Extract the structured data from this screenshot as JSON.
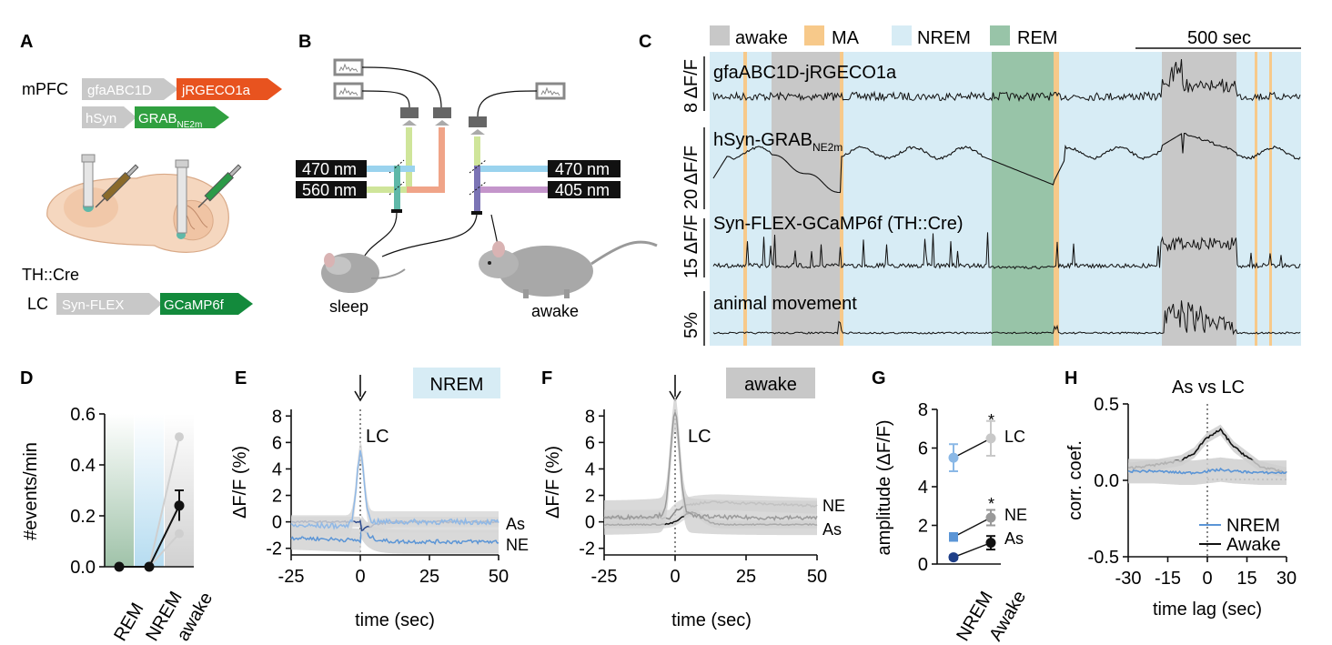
{
  "panels": {
    "A": "A",
    "B": "B",
    "C": "C",
    "D": "D",
    "E": "E",
    "F": "F",
    "G": "G",
    "H": "H"
  },
  "colors": {
    "awake": "#c8c8c8",
    "ma": "#f7c98a",
    "nrem": "#d7ecf5",
    "rem": "#98c4a8",
    "red": "#e8531f",
    "green": "#30a040",
    "darkgreen": "#138a3c",
    "blue": "#9ad3ee",
    "lightgreen": "#cfe59a",
    "orange": "#f0a488",
    "purple": "#c495cb",
    "nremline": "#5b95d6",
    "graytrace": "#8a8a8a"
  },
  "panelA": {
    "mpfc": "mPFC",
    "gfa": "gfaABC1D",
    "jr": "jRGECO1a",
    "hsyn": "hSyn",
    "grab": "GRAB",
    "grab_sub": "NE2m",
    "thcre": "TH::Cre",
    "lc": "LC",
    "synflex": "Syn-FLEX",
    "gcamp": "GCaMP6f"
  },
  "panelB": {
    "wl1": "470 nm",
    "wl2": "560 nm",
    "wl3": "470 nm",
    "wl4": "405 nm",
    "sleep": "sleep",
    "awake": "awake"
  },
  "panelC": {
    "legend": [
      {
        "label": "awake",
        "color": "#c8c8c8"
      },
      {
        "label": "MA",
        "color": "#f7c98a"
      },
      {
        "label": "NREM",
        "color": "#d7ecf5"
      },
      {
        "label": "REM",
        "color": "#98c4a8"
      }
    ],
    "scalebar": "500 sec",
    "traces": [
      {
        "name": "gfaABC1D-jRGECO1a",
        "scale": "8 ΔF/F"
      },
      {
        "name": "hSyn-GRAB",
        "sub": "NE2m",
        "scale": "20 ΔF/F"
      },
      {
        "name": "Syn-FLEX-GCaMP6f (TH::Cre)",
        "scale": "15 ΔF/F"
      },
      {
        "name": "animal movement",
        "scale": "5%"
      }
    ]
  },
  "panelE": {
    "tag": "NREM",
    "lc": "LC",
    "as": "As",
    "ne": "NE"
  },
  "panelF": {
    "tag": "awake",
    "lc": "LC",
    "ne": "NE",
    "as": "As"
  },
  "panelG": {
    "lc": "LC",
    "ne": "NE",
    "as": "As",
    "star": "*"
  },
  "panelH": {
    "title": "As vs LC",
    "legend": [
      "NREM",
      "Awake"
    ]
  },
  "chart_data": [
    {
      "panel": "D",
      "type": "scatter",
      "categories": [
        "REM",
        "NREM",
        "awake"
      ],
      "series": [
        {
          "values": [
            0.0,
            0.0,
            0.24
          ],
          "error": [
            0,
            0,
            0.06
          ]
        }
      ],
      "individual_awake_range": [
        0.13,
        0.51
      ],
      "ylabel": "#events/min",
      "ylim": [
        0,
        0.6
      ],
      "yticks": [
        "0.0",
        "0.2",
        "0.4",
        "0.6"
      ]
    },
    {
      "panel": "E",
      "type": "line",
      "xlabel": "time (sec)",
      "ylabel": "ΔF/F (%)",
      "xlim": [
        -25,
        50
      ],
      "ylim": [
        -2.5,
        8.5
      ],
      "xticks": [
        "-25",
        "0",
        "25",
        "50"
      ],
      "yticks": [
        "-2",
        "0",
        "2",
        "4",
        "6",
        "8"
      ],
      "series": [
        {
          "name": "LC",
          "peak": 5.3
        },
        {
          "name": "As",
          "baseline": 0.0
        },
        {
          "name": "NE",
          "baseline": -1.5
        }
      ]
    },
    {
      "panel": "F",
      "type": "line",
      "xlabel": "time (sec)",
      "ylabel": "ΔF/F (%)",
      "xlim": [
        -25,
        50
      ],
      "ylim": [
        -2.5,
        8.5
      ],
      "xticks": [
        "-25",
        "0",
        "25",
        "50"
      ],
      "yticks": [
        "-2",
        "0",
        "2",
        "4",
        "6",
        "8"
      ],
      "series": [
        {
          "name": "LC",
          "peak": 7.6
        },
        {
          "name": "NE",
          "baseline": 1.3
        },
        {
          "name": "As",
          "baseline": -0.2
        }
      ]
    },
    {
      "panel": "G",
      "type": "scatter",
      "categories": [
        "NREM",
        "Awake"
      ],
      "ylabel": "amplitude (ΔF/F)",
      "ylim": [
        0,
        8
      ],
      "yticks": [
        "0",
        "2",
        "4",
        "6",
        "8"
      ],
      "series": [
        {
          "name": "LC",
          "values": [
            5.5,
            6.5
          ],
          "error": [
            0.7,
            0.9
          ]
        },
        {
          "name": "NE",
          "values": [
            1.4,
            2.4
          ],
          "error": [
            0.2,
            0.4
          ]
        },
        {
          "name": "As",
          "values": [
            0.35,
            1.1
          ],
          "error": [
            0.1,
            0.35
          ]
        }
      ]
    },
    {
      "panel": "H",
      "type": "line",
      "title": "As vs LC",
      "xlabel": "time lag (sec)",
      "ylabel": "corr. coef.",
      "xlim": [
        -30,
        30
      ],
      "ylim": [
        -0.5,
        0.5
      ],
      "xticks": [
        "-30",
        "-15",
        "0",
        "15",
        "30"
      ],
      "yticks": [
        "-0.5",
        "0.0",
        "0.5"
      ],
      "series": [
        {
          "name": "NREM",
          "values": [
            0.06,
            0.06,
            0.05,
            0.05,
            0.06,
            0.07,
            0.06,
            0.05,
            0.05
          ]
        },
        {
          "name": "Awake",
          "values": [
            0.08,
            0.1,
            0.13,
            0.18,
            0.28,
            0.33,
            0.22,
            0.09,
            0.05
          ]
        }
      ],
      "x": [
        -30,
        -20,
        -10,
        -5,
        0,
        5,
        10,
        20,
        30
      ]
    }
  ]
}
